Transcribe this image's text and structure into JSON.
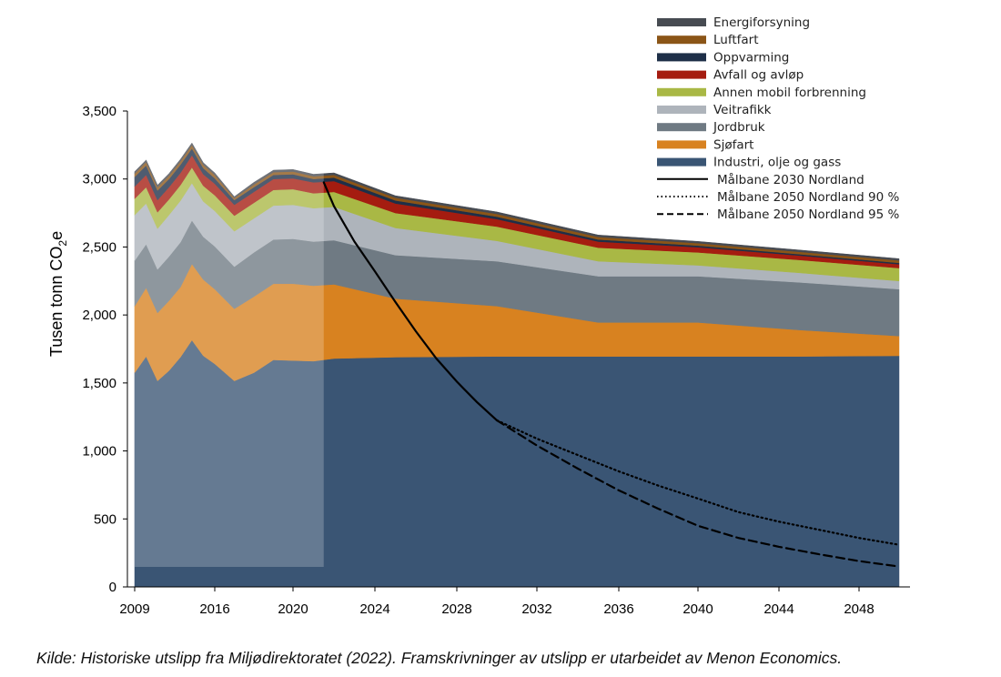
{
  "source_note": "Kilde: Historiske utslipp fra Miljødirektoratet (2022). Framskrivninger av utslipp er utarbeidet av Menon Economics.",
  "chart_data": {
    "type": "area",
    "ylabel_main": "Tusen tonn CO",
    "ylabel_sub": "2",
    "ylabel_end": "e",
    "ylim": [
      0,
      3500
    ],
    "yticks": [
      0,
      500,
      1000,
      1500,
      2000,
      2500,
      3000,
      3500
    ],
    "ytick_labels": [
      "0",
      "500",
      "1,000",
      "1,500",
      "2,000",
      "2,500",
      "3,000",
      "3,500"
    ],
    "xticks": [
      2009,
      2016,
      2020,
      2024,
      2028,
      2032,
      2036,
      2040,
      2044,
      2048
    ],
    "xtick_labels": [
      "2009",
      "2016",
      "2020",
      "2024",
      "2028",
      "2032",
      "2036",
      "2040",
      "2044",
      "2048"
    ],
    "historical_shading": [
      2009,
      2021.5
    ],
    "x": [
      2009,
      2010,
      2011,
      2012,
      2013,
      2014,
      2015,
      2016,
      2017,
      2018,
      2019,
      2020,
      2021,
      2022,
      2025,
      2030,
      2035,
      2040,
      2045,
      2050
    ],
    "series": [
      {
        "name": "Industri, olje og gass",
        "color": "#3a5574",
        "values": [
          1575,
          1695,
          1515,
          1590,
          1690,
          1815,
          1700,
          1640,
          1515,
          1575,
          1670,
          1665,
          1660,
          1680,
          1690,
          1695,
          1695,
          1695,
          1695,
          1700
        ]
      },
      {
        "name": "Sjøfart",
        "color": "#d88220",
        "values": [
          490,
          505,
          500,
          515,
          515,
          560,
          560,
          550,
          530,
          560,
          560,
          565,
          555,
          545,
          430,
          370,
          250,
          250,
          195,
          145
        ]
      },
      {
        "name": "Jordbruk",
        "color": "#6f7a83",
        "values": [
          335,
          320,
          320,
          325,
          330,
          320,
          315,
          315,
          310,
          325,
          325,
          330,
          325,
          325,
          320,
          330,
          340,
          340,
          350,
          345
        ]
      },
      {
        "name": "Veitrafikk",
        "color": "#aeb4bb",
        "values": [
          335,
          300,
          300,
          305,
          305,
          275,
          260,
          260,
          260,
          250,
          250,
          250,
          245,
          245,
          200,
          150,
          110,
          80,
          70,
          60
        ]
      },
      {
        "name": "Annen mobil forbrenning",
        "color": "#a9b845",
        "values": [
          120,
          120,
          120,
          115,
          115,
          115,
          115,
          115,
          115,
          115,
          115,
          115,
          110,
          110,
          110,
          105,
          100,
          95,
          95,
          95
        ]
      },
      {
        "name": "Avfall og avløp",
        "color": "#a51c10",
        "values": [
          90,
          90,
          90,
          90,
          90,
          90,
          85,
          85,
          80,
          80,
          80,
          80,
          80,
          80,
          70,
          55,
          45,
          38,
          32,
          28
        ]
      },
      {
        "name": "Oppvarming",
        "color": "#1e2f48",
        "values": [
          70,
          70,
          70,
          60,
          60,
          50,
          45,
          40,
          35,
          35,
          30,
          30,
          25,
          25,
          22,
          18,
          15,
          12,
          10,
          10
        ]
      },
      {
        "name": "Luftfart",
        "color": "#8b5517",
        "values": [
          25,
          25,
          25,
          25,
          25,
          25,
          25,
          25,
          15,
          20,
          20,
          20,
          20,
          20,
          20,
          20,
          19,
          18,
          18,
          18
        ]
      },
      {
        "name": "Energiforsyning",
        "color": "#474b52",
        "values": [
          15,
          15,
          15,
          15,
          15,
          15,
          15,
          15,
          10,
          15,
          15,
          15,
          15,
          15,
          15,
          15,
          14,
          13,
          13,
          13
        ]
      }
    ],
    "lines": [
      {
        "name": "Målbane 2030 Nordland",
        "style": "solid",
        "x": [
          2021.5,
          2022,
          2023,
          2024,
          2025,
          2026,
          2027,
          2028,
          2029,
          2030
        ],
        "values": [
          2975,
          2800,
          2540,
          2320,
          2095,
          1880,
          1680,
          1510,
          1360,
          1225
        ]
      },
      {
        "name": "Målbane 2050 Nordland 90 %",
        "style": "dotted",
        "x": [
          2030,
          2032,
          2034,
          2036,
          2038,
          2040,
          2042,
          2044,
          2046,
          2048,
          2050
        ],
        "values": [
          1225,
          1090,
          970,
          850,
          745,
          650,
          550,
          480,
          420,
          360,
          310
        ]
      },
      {
        "name": "Målbane 2050 Nordland 95 %",
        "style": "dashed",
        "x": [
          2030,
          2032,
          2034,
          2036,
          2038,
          2040,
          2042,
          2044,
          2046,
          2048,
          2050
        ],
        "values": [
          1225,
          1040,
          870,
          710,
          575,
          450,
          360,
          295,
          240,
          190,
          150
        ]
      }
    ],
    "legend": [
      {
        "label": "Energiforsyning",
        "kind": "swatch",
        "color": "#474b52"
      },
      {
        "label": "Luftfart",
        "kind": "swatch",
        "color": "#8b5517"
      },
      {
        "label": "Oppvarming",
        "kind": "swatch",
        "color": "#1e2f48"
      },
      {
        "label": "Avfall og avløp",
        "kind": "swatch",
        "color": "#a51c10"
      },
      {
        "label": "Annen mobil forbrenning",
        "kind": "swatch",
        "color": "#a9b845"
      },
      {
        "label": "Veitrafikk",
        "kind": "swatch",
        "color": "#aeb4bb"
      },
      {
        "label": "Jordbruk",
        "kind": "swatch",
        "color": "#6f7a83"
      },
      {
        "label": "Sjøfart",
        "kind": "swatch",
        "color": "#d88220"
      },
      {
        "label": "Industri, olje og gass",
        "kind": "swatch",
        "color": "#3a5574"
      },
      {
        "label": "Målbane 2030 Nordland",
        "kind": "line",
        "style": "solid"
      },
      {
        "label": "Målbane 2050 Nordland 90 %",
        "kind": "line",
        "style": "dotted"
      },
      {
        "label": "Målbane 2050 Nordland 95 %",
        "kind": "line",
        "style": "dashed"
      }
    ],
    "legend_position": "top-right",
    "grid": false
  }
}
